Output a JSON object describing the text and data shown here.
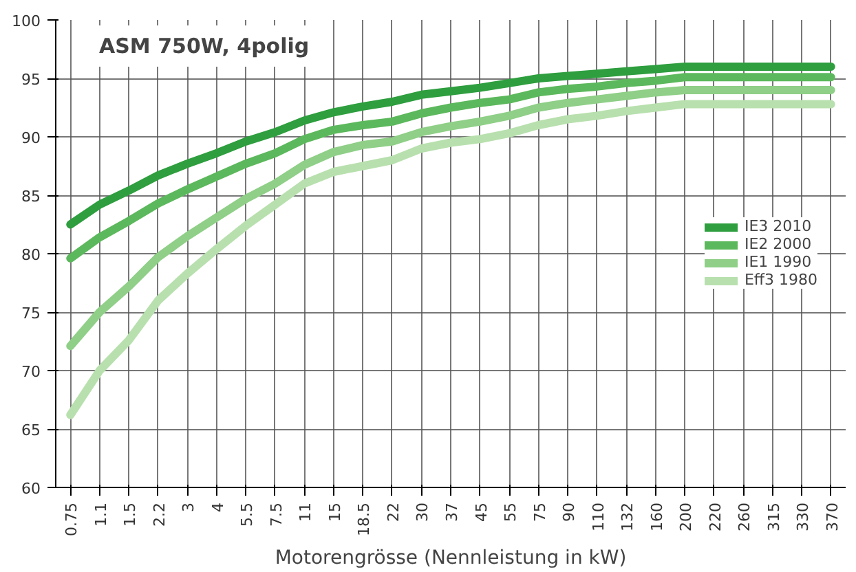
{
  "chart_data": {
    "type": "line",
    "annotations": [
      "ASM 750W, 4polig"
    ],
    "xlabel": "Motorengrösse (Nennleistung in kW)",
    "categories": [
      "0.75",
      "1.1",
      "1.5",
      "2.2",
      "3",
      "4",
      "5.5",
      "7.5",
      "11",
      "15",
      "18.5",
      "22",
      "30",
      "37",
      "45",
      "55",
      "75",
      "90",
      "110",
      "132",
      "160",
      "200",
      "220",
      "260",
      "315",
      "330",
      "370"
    ],
    "ylim": [
      60,
      100
    ],
    "yticks": [
      60,
      65,
      70,
      75,
      80,
      85,
      90,
      95,
      100
    ],
    "grid": true,
    "legend": "right",
    "marker": "none",
    "line_style": "solid",
    "series": [
      {
        "name": "IE3 2010",
        "color": "#2e9e3e",
        "values": [
          82.5,
          84.2,
          85.4,
          86.7,
          87.7,
          88.6,
          89.6,
          90.4,
          91.4,
          92.1,
          92.6,
          93.0,
          93.6,
          93.9,
          94.2,
          94.6,
          95.0,
          95.2,
          95.4,
          95.6,
          95.8,
          96.0,
          96.0,
          96.0,
          96.0,
          96.0,
          96.0
        ]
      },
      {
        "name": "IE2 2000",
        "color": "#5cb85c",
        "values": [
          79.6,
          81.4,
          82.8,
          84.3,
          85.5,
          86.6,
          87.7,
          88.6,
          89.8,
          90.6,
          91.0,
          91.3,
          92.0,
          92.5,
          92.9,
          93.2,
          93.8,
          94.1,
          94.3,
          94.6,
          94.8,
          95.1,
          95.1,
          95.1,
          95.1,
          95.1,
          95.1
        ]
      },
      {
        "name": "IE1 1990",
        "color": "#8fcf87",
        "values": [
          72.1,
          75.0,
          77.2,
          79.7,
          81.5,
          83.1,
          84.7,
          86.0,
          87.6,
          88.7,
          89.3,
          89.6,
          90.4,
          90.9,
          91.3,
          91.8,
          92.5,
          92.9,
          93.2,
          93.5,
          93.8,
          94.0,
          94.0,
          94.0,
          94.0,
          94.0,
          94.0
        ]
      },
      {
        "name": "Eff3 1980",
        "color": "#b8e0ae",
        "values": [
          66.2,
          70.0,
          72.6,
          76.0,
          78.3,
          80.4,
          82.4,
          84.2,
          86.0,
          87.0,
          87.5,
          88.0,
          89.0,
          89.5,
          89.8,
          90.3,
          91.0,
          91.5,
          91.8,
          92.2,
          92.5,
          92.8,
          92.8,
          92.8,
          92.8,
          92.8,
          92.8
        ]
      }
    ]
  }
}
